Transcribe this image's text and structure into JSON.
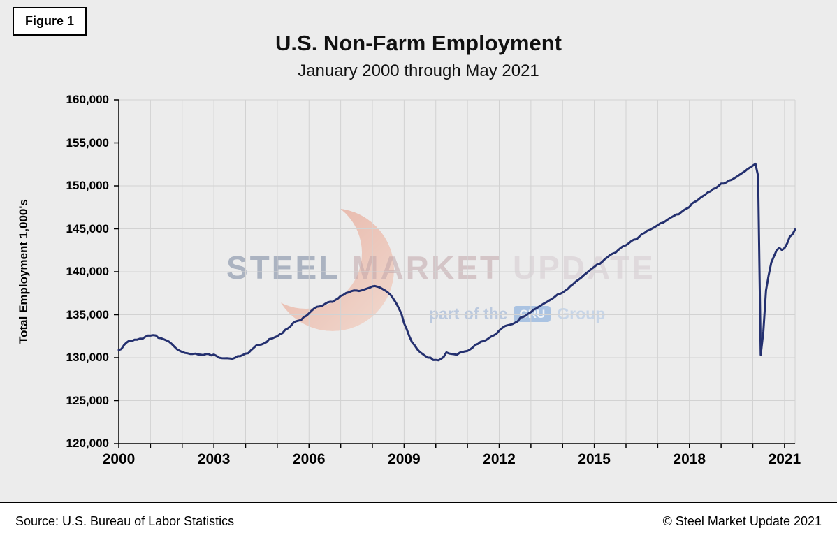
{
  "figure_label": "Figure 1",
  "title": "U.S. Non-Farm Employment",
  "subtitle": "January 2000 through May 2021",
  "footer": {
    "source": "Source: U.S. Bureau  of Labor Statistics",
    "copyright": "© Steel Market Update 2021"
  },
  "watermark": {
    "word1": "STEEL",
    "word2": "MARKET",
    "word3": "UPDATE",
    "tagline_prefix": "part of the",
    "badge": "CRU",
    "tagline_suffix": "Group"
  },
  "chart_data": {
    "type": "line",
    "title": "U.S. Non-Farm Employment",
    "subtitle": "January 2000 through May 2021",
    "xlabel": "",
    "ylabel": "Total Employment 1,000's",
    "ylim": [
      120000,
      160000
    ],
    "ytick_step": 5000,
    "ytick_labels": [
      "120,000",
      "125,000",
      "130,000",
      "135,000",
      "140,000",
      "145,000",
      "150,000",
      "155,000",
      "160,000"
    ],
    "xtick_years": [
      2000,
      2003,
      2006,
      2009,
      2012,
      2015,
      2018,
      2021
    ],
    "x_start": "2000-01",
    "x_end": "2021-05",
    "grid": true,
    "legend": "none",
    "line_color": "#24306F",
    "series": [
      {
        "name": "Total Non-Farm Employment (1,000's)",
        "frequency": "monthly",
        "monthly_values": [
          130890,
          131010,
          131480,
          131770,
          131980,
          131940,
          132100,
          132100,
          132210,
          132200,
          132420,
          132580,
          132570,
          132630,
          132590,
          132310,
          132270,
          132150,
          132020,
          131870,
          131610,
          131290,
          130990,
          130810,
          130670,
          130550,
          130510,
          130430,
          130430,
          130470,
          130370,
          130350,
          130300,
          130420,
          130420,
          130260,
          130360,
          130200,
          129990,
          129940,
          129930,
          129940,
          129910,
          129870,
          129980,
          130170,
          130190,
          130320,
          130480,
          130520,
          130850,
          131110,
          131410,
          131490,
          131540,
          131670,
          131830,
          132170,
          132230,
          132370,
          132500,
          132740,
          132870,
          133240,
          133410,
          133660,
          134040,
          134230,
          134300,
          134380,
          134720,
          134880,
          135160,
          135470,
          135740,
          135920,
          135960,
          136040,
          136240,
          136420,
          136510,
          136500,
          136720,
          136890,
          137190,
          137310,
          137520,
          137600,
          137740,
          137820,
          137810,
          137760,
          137840,
          137940,
          138050,
          138150,
          138300,
          138340,
          138250,
          138150,
          137970,
          137790,
          137550,
          137260,
          136810,
          136350,
          135760,
          135100,
          134000,
          133300,
          132500,
          131800,
          131440,
          130970,
          130650,
          130430,
          130200,
          130000,
          130000,
          129720,
          129740,
          129690,
          129850,
          130100,
          130620,
          130490,
          130430,
          130390,
          130330,
          130570,
          130660,
          130730,
          130780,
          130970,
          131190,
          131510,
          131610,
          131850,
          131920,
          132040,
          132260,
          132470,
          132600,
          132800,
          133160,
          133420,
          133660,
          133760,
          133830,
          133910,
          134070,
          134230,
          134660,
          134740,
          134880,
          135120,
          135300,
          135580,
          135720,
          135920,
          136120,
          136320,
          136470,
          136670,
          136840,
          137070,
          137340,
          137430,
          137580,
          137800,
          138020,
          138340,
          138560,
          138860,
          139070,
          139300,
          139590,
          139830,
          140100,
          140340,
          140570,
          140830,
          140900,
          141160,
          141480,
          141680,
          141960,
          142110,
          142220,
          142510,
          142770,
          142990,
          143080,
          143310,
          143570,
          143740,
          143780,
          144080,
          144390,
          144520,
          144770,
          144880,
          145060,
          145220,
          145420,
          145640,
          145710,
          145900,
          146110,
          146320,
          146480,
          146670,
          146690,
          146960,
          147190,
          147360,
          147540,
          147950,
          148130,
          148300,
          148570,
          148790,
          148970,
          149250,
          149360,
          149640,
          149750,
          149980,
          150260,
          150270,
          150410,
          150620,
          150710,
          150890,
          151080,
          151290,
          151500,
          151690,
          151950,
          152140,
          152350,
          152560,
          151120,
          130330,
          133060,
          137840,
          139600,
          141090,
          141800,
          142480,
          142790,
          142530,
          142760,
          143300,
          144080,
          144350,
          144920
        ]
      }
    ]
  }
}
